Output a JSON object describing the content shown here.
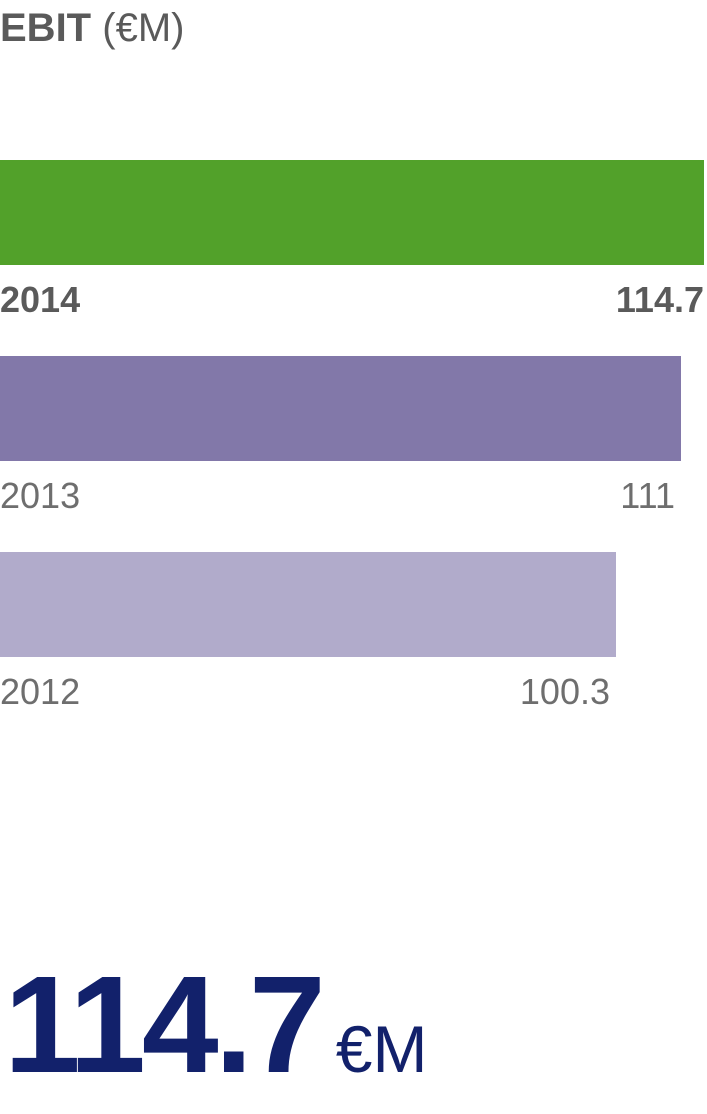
{
  "title": {
    "metric": "EBIT",
    "unit": "(€M)"
  },
  "colors": {
    "2014": "#52a12a",
    "2013": "#8278a9",
    "2012": "#b1abcb",
    "text": "#5a5a5a",
    "highlight": "#12216b"
  },
  "chart_data": {
    "type": "bar",
    "orientation": "horizontal",
    "title": "EBIT (€M)",
    "categories": [
      "2014",
      "2013",
      "2012"
    ],
    "values": [
      114.7,
      111,
      100.3
    ],
    "value_labels": [
      "114.7",
      "111",
      "100.3"
    ],
    "xlim": [
      0,
      114.7
    ],
    "grid": false,
    "legend": "none"
  },
  "highlight": {
    "value": "114.7",
    "unit": "€M"
  }
}
